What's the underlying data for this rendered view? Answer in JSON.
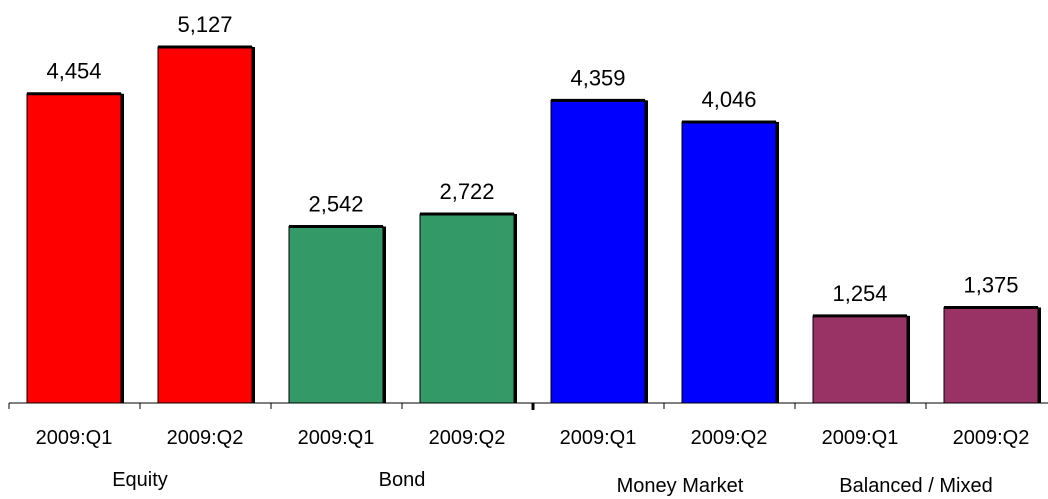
{
  "chart_data": {
    "type": "bar",
    "title": "",
    "xlabel": "",
    "ylabel": "",
    "ylim": [
      0,
      5500
    ],
    "grid": false,
    "legend": "none",
    "groups": [
      {
        "name": "Equity",
        "color": "#FF0000",
        "bars": [
          {
            "category": "2009:Q1",
            "value": 4454,
            "label": "4,454"
          },
          {
            "category": "2009:Q2",
            "value": 5127,
            "label": "5,127"
          }
        ]
      },
      {
        "name": "Bond",
        "color": "#339966",
        "bars": [
          {
            "category": "2009:Q1",
            "value": 2542,
            "label": "2,542"
          },
          {
            "category": "2009:Q2",
            "value": 2722,
            "label": "2,722"
          }
        ]
      },
      {
        "name": "Money Market",
        "color": "#0000FF",
        "bars": [
          {
            "category": "2009:Q1",
            "value": 4359,
            "label": "4,359"
          },
          {
            "category": "2009:Q2",
            "value": 4046,
            "label": "4,046"
          }
        ]
      },
      {
        "name": "Balanced / Mixed",
        "color": "#993366",
        "bars": [
          {
            "category": "2009:Q1",
            "value": 1254,
            "label": "1,254"
          },
          {
            "category": "2009:Q2",
            "value": 1375,
            "label": "1,375"
          }
        ]
      }
    ]
  }
}
